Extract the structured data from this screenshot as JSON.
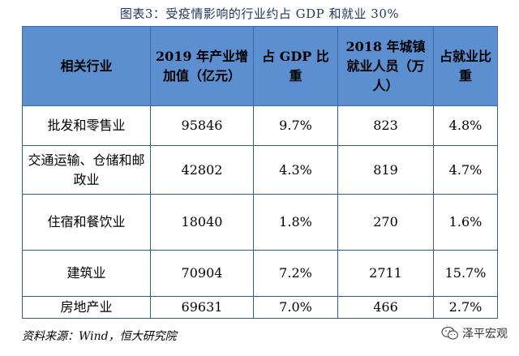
{
  "title": "图表3：受疫情影响的行业约占 GDP 和就业 30%",
  "table": {
    "headers": [
      "相关行业",
      "2019 年产业增加值（亿元）",
      "占 GDP 比重",
      "2018 年城镇就业人员（万人）",
      "占就业比重"
    ],
    "rows": [
      [
        "批发和零售业",
        "95846",
        "9.7%",
        "823",
        "4.8%"
      ],
      [
        "交通运输、仓储和邮政业",
        "42802",
        "4.3%",
        "819",
        "4.7%"
      ],
      [
        "住宿和餐饮业",
        "18040",
        "1.8%",
        "270",
        "1.6%"
      ],
      [
        "建筑业",
        "70904",
        "7.2%",
        "2711",
        "15.7%"
      ],
      [
        "房地产业",
        "69631",
        "7.0%",
        "466",
        "2.7%"
      ]
    ]
  },
  "source": "资料来源：Wind，恒大研究院",
  "watermark": {
    "text": "泽平宏观",
    "icon": "wechat-icon"
  }
}
